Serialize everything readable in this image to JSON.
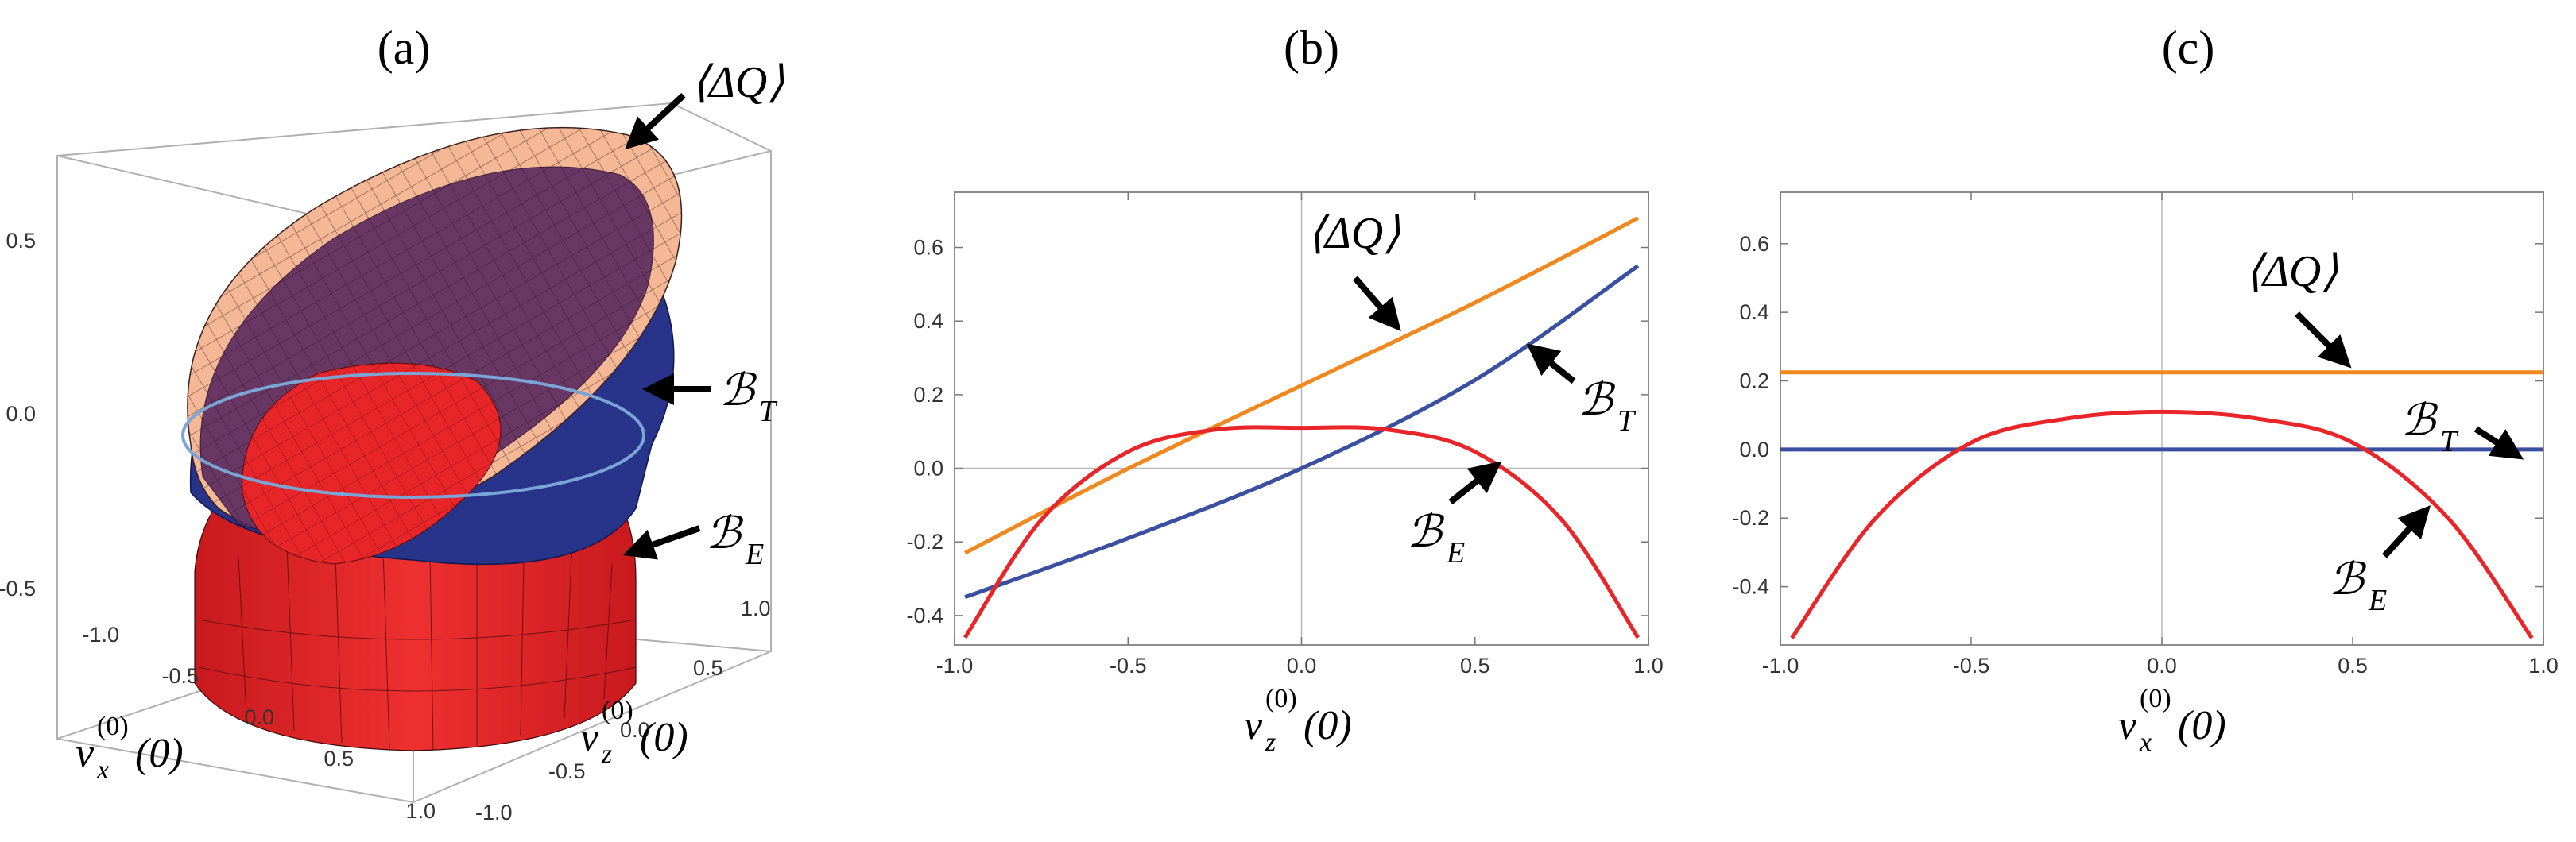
{
  "panels": [
    {
      "label": "(a)"
    },
    {
      "label": "(b)"
    },
    {
      "label": "(c)"
    }
  ],
  "annotations": {
    "dq": "⟨ΔQ⟩",
    "bt_main": "ℬ",
    "bt_sub": "T",
    "be_main": "ℬ",
    "be_sub": "E"
  },
  "axis_titles": {
    "vx": {
      "main": "v",
      "sub": "x",
      "sup": "(0)",
      "arg": "(0)"
    },
    "vz": {
      "main": "v",
      "sub": "z",
      "sup": "(0)",
      "arg": "(0)"
    }
  },
  "colors": {
    "dq": "#f0881e",
    "bt": "#3b4fa0",
    "be": "#e8262a",
    "ring": "#7aa5d6",
    "peach": "#f4b896",
    "purple": "#5a2a5e",
    "navy": "#28338a"
  },
  "chart_data": [
    {
      "type": "surface3d",
      "panel": "(a)",
      "xlabel": "v_x^(0)(0)",
      "ylabel": "v_z^(0)(0)",
      "xlim": [
        -1.0,
        1.0
      ],
      "ylim": [
        -1.0,
        1.0
      ],
      "zlim": [
        -0.6,
        0.75
      ],
      "x_ticks": [
        "-1.0",
        "-0.5",
        "0.0",
        "0.5",
        "1.0"
      ],
      "y_ticks": [
        "-1.0",
        "-0.5",
        "0.0",
        "0.5",
        "1.0"
      ],
      "z_ticks": [
        "0.5",
        "0.0",
        "-0.5"
      ],
      "surfaces": [
        "⟨ΔQ⟩",
        "ℬ_T",
        "ℬ_E"
      ]
    },
    {
      "type": "line",
      "panel": "(b)",
      "xlabel": "v_z^(0)(0)",
      "xlim": [
        -1.0,
        1.0
      ],
      "ylim": [
        -0.48,
        0.75
      ],
      "x_ticks": [
        "-1.0",
        "-0.5",
        "0.0",
        "0.5",
        "1.0"
      ],
      "y_ticks": [
        "0.6",
        "0.4",
        "0.2",
        "0.0",
        "-0.2",
        "-0.4"
      ],
      "series": [
        {
          "name": "⟨ΔQ⟩",
          "x": [
            -0.97,
            -0.5,
            0.0,
            0.5,
            0.97
          ],
          "y": [
            -0.23,
            -0.001,
            0.225,
            0.45,
            0.68
          ]
        },
        {
          "name": "ℬ_T",
          "x": [
            -0.97,
            -0.5,
            0.0,
            0.5,
            0.97
          ],
          "y": [
            -0.35,
            -0.19,
            0.0,
            0.24,
            0.55
          ]
        },
        {
          "name": "ℬ_E",
          "x": [
            -0.97,
            -0.75,
            -0.5,
            -0.25,
            0.0,
            0.25,
            0.5,
            0.75,
            0.97
          ],
          "y": [
            -0.46,
            -0.14,
            0.045,
            0.105,
            0.11,
            0.105,
            0.045,
            -0.14,
            -0.46
          ]
        }
      ]
    },
    {
      "type": "line",
      "panel": "(c)",
      "xlabel": "v_x^(0)(0)",
      "xlim": [
        -1.0,
        1.0
      ],
      "ylim": [
        -0.57,
        0.75
      ],
      "x_ticks": [
        "-1.0",
        "-0.5",
        "0.0",
        "0.5",
        "1.0"
      ],
      "y_ticks": [
        "0.6",
        "0.4",
        "0.2",
        "0.0",
        "-0.2",
        "-0.4"
      ],
      "series": [
        {
          "name": "⟨ΔQ⟩",
          "x": [
            -1.0,
            1.0
          ],
          "y": [
            0.225,
            0.225
          ]
        },
        {
          "name": "ℬ_T",
          "x": [
            -1.0,
            1.0
          ],
          "y": [
            0.0,
            0.0
          ]
        },
        {
          "name": "ℬ_E",
          "x": [
            -0.97,
            -0.75,
            -0.5,
            -0.25,
            0.0,
            0.25,
            0.5,
            0.75,
            0.97
          ],
          "y": [
            -0.55,
            -0.2,
            0.02,
            0.09,
            0.11,
            0.09,
            0.02,
            -0.2,
            -0.55
          ]
        }
      ]
    }
  ]
}
